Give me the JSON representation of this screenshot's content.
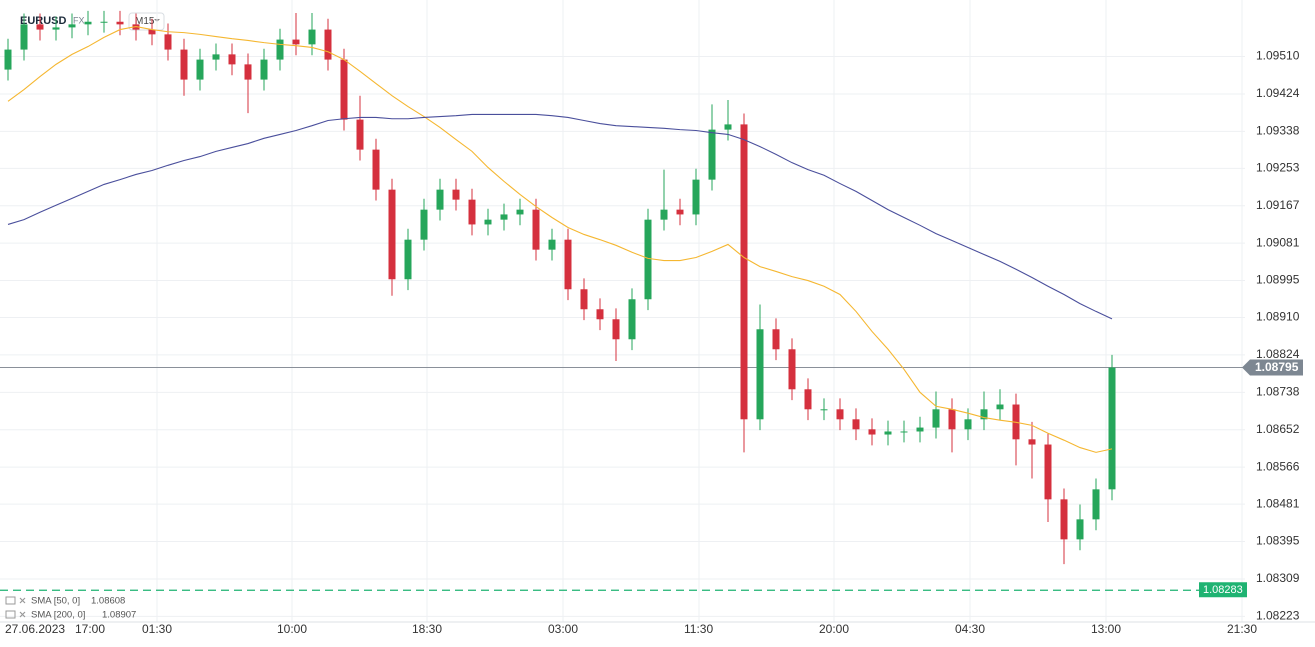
{
  "chart_data": {
    "type": "candlestick",
    "symbol": "EURUSD",
    "market": "FX",
    "interval": "M15",
    "up_color": "#26a65b",
    "down_color": "#d5303e",
    "open": [
      1.0948,
      1.09526,
      1.09584,
      1.09572,
      1.09577,
      1.09584,
      1.0959,
      1.0959,
      1.09584,
      1.09572,
      1.09561,
      1.09526,
      1.09457,
      1.09503,
      1.09515,
      1.09492,
      1.09457,
      1.09503,
      1.09549,
      1.09538,
      1.09572,
      1.09503,
      1.09365,
      1.09296,
      1.09204,
      1.08998,
      1.09089,
      1.09158,
      1.09204,
      1.09181,
      1.09124,
      1.09135,
      1.09147,
      1.09158,
      1.09066,
      1.09089,
      1.08975,
      1.08929,
      1.08906,
      1.0886,
      1.08952,
      1.09135,
      1.09158,
      1.09147,
      1.09227,
      1.09342,
      1.09354,
      1.08676,
      1.08883,
      1.08837,
      1.08745,
      1.08699,
      1.08699,
      1.08676,
      1.08653,
      1.08641,
      1.08648,
      1.08648,
      1.08657,
      1.08699,
      1.08653,
      1.08676,
      1.08699,
      1.0871,
      1.0863,
      1.08618,
      1.08492,
      1.084,
      1.08446,
      1.08515
    ],
    "high": [
      1.09551,
      1.09609,
      1.09609,
      1.09602,
      1.09609,
      1.09615,
      1.09615,
      1.09615,
      1.09609,
      1.09597,
      1.09586,
      1.09551,
      1.09528,
      1.0954,
      1.0954,
      1.09517,
      1.09528,
      1.09574,
      1.0961,
      1.0961,
      1.09597,
      1.09528,
      1.0942,
      1.09321,
      1.09229,
      1.09114,
      1.09183,
      1.09229,
      1.09229,
      1.09206,
      1.0916,
      1.09172,
      1.09183,
      1.09183,
      1.09114,
      1.09114,
      1.09,
      1.08954,
      1.08931,
      1.08977,
      1.0916,
      1.0925,
      1.09183,
      1.09252,
      1.094,
      1.0941,
      1.09379,
      1.0894,
      1.08908,
      1.08862,
      1.0877,
      1.08724,
      1.08724,
      1.08701,
      1.08678,
      1.08673,
      1.08673,
      1.08682,
      1.0874,
      1.08724,
      1.08701,
      1.0874,
      1.08745,
      1.08735,
      1.0867,
      1.08643,
      1.08517,
      1.0848,
      1.0854,
      1.08824
    ],
    "low": [
      1.09455,
      1.09501,
      1.09547,
      1.09547,
      1.09552,
      1.09559,
      1.09565,
      1.09559,
      1.09547,
      1.09536,
      1.09501,
      1.0942,
      1.09432,
      1.09478,
      1.09467,
      1.0938,
      1.09432,
      1.09478,
      1.09513,
      1.09513,
      1.09478,
      1.0934,
      1.09271,
      1.09179,
      1.0896,
      1.08973,
      1.09064,
      1.09133,
      1.09156,
      1.09099,
      1.09099,
      1.0911,
      1.09122,
      1.09041,
      1.09041,
      1.0895,
      1.08904,
      1.08881,
      1.0881,
      1.08835,
      1.08927,
      1.0911,
      1.09122,
      1.09122,
      1.09202,
      1.09317,
      1.086,
      1.08651,
      1.08812,
      1.0872,
      1.08674,
      1.08674,
      1.08651,
      1.08628,
      1.08616,
      1.08616,
      1.08623,
      1.08623,
      1.08632,
      1.086,
      1.08628,
      1.08651,
      1.08674,
      1.0857,
      1.0854,
      1.0844,
      1.08343,
      1.08375,
      1.08421,
      1.0849
    ],
    "close": [
      1.09526,
      1.09584,
      1.09572,
      1.09577,
      1.09584,
      1.0959,
      1.0959,
      1.09584,
      1.09572,
      1.09561,
      1.09526,
      1.09457,
      1.09503,
      1.09515,
      1.09492,
      1.09457,
      1.09503,
      1.09549,
      1.09538,
      1.09572,
      1.09503,
      1.09365,
      1.09296,
      1.09204,
      1.08998,
      1.09089,
      1.09158,
      1.09204,
      1.09181,
      1.09124,
      1.09135,
      1.09147,
      1.09158,
      1.09066,
      1.09089,
      1.08975,
      1.08929,
      1.08906,
      1.0886,
      1.08952,
      1.09135,
      1.09158,
      1.09147,
      1.09227,
      1.09342,
      1.09354,
      1.08676,
      1.08883,
      1.08837,
      1.08745,
      1.08699,
      1.08699,
      1.08676,
      1.08653,
      1.08641,
      1.08648,
      1.08648,
      1.08657,
      1.08699,
      1.08653,
      1.08676,
      1.08699,
      1.0871,
      1.0863,
      1.08618,
      1.08492,
      1.084,
      1.08446,
      1.08515,
      1.08795
    ],
    "series": [
      {
        "name": "SMA [50, 0]",
        "color": "#f5b731",
        "values": [
          1.09407,
          1.09434,
          1.09464,
          1.09492,
          1.09515,
          1.09533,
          1.09554,
          1.09572,
          1.09579,
          1.09572,
          1.09567,
          1.09565,
          1.09561,
          1.09556,
          1.09551,
          1.09547,
          1.09542,
          1.09538,
          1.09535,
          1.09531,
          1.09521,
          1.09503,
          1.09476,
          1.09448,
          1.0942,
          1.09395,
          1.09372,
          1.09347,
          1.09319,
          1.09292,
          1.09255,
          1.09223,
          1.09193,
          1.09165,
          1.0914,
          1.09117,
          1.09101,
          1.09089,
          1.09076,
          1.0906,
          1.09046,
          1.09041,
          1.09041,
          1.09048,
          1.09062,
          1.09078,
          1.09048,
          1.09027,
          1.09016,
          1.09004,
          1.08995,
          1.08982,
          1.08963,
          1.08924,
          1.08878,
          1.08837,
          1.08791,
          1.08738,
          1.08706,
          1.08699,
          1.0869,
          1.0868,
          1.08674,
          1.08669,
          1.08662,
          1.08644,
          1.08628,
          1.08611,
          1.086,
          1.08608
        ]
      },
      {
        "name": "SMA [200, 0]",
        "color": "#4a4f9c",
        "values": [
          1.09124,
          1.09135,
          1.09152,
          1.09168,
          1.09184,
          1.092,
          1.09216,
          1.09227,
          1.09239,
          1.09248,
          1.0926,
          1.09271,
          1.0928,
          1.09292,
          1.09301,
          1.0931,
          1.09322,
          1.09331,
          1.0934,
          1.09351,
          1.09363,
          1.09367,
          1.0937,
          1.0937,
          1.09367,
          1.09367,
          1.0937,
          1.09372,
          1.09374,
          1.09377,
          1.09377,
          1.09377,
          1.09377,
          1.09377,
          1.09374,
          1.0937,
          1.09363,
          1.09356,
          1.09351,
          1.09349,
          1.09347,
          1.09345,
          1.09342,
          1.0934,
          1.09335,
          1.09331,
          1.09319,
          1.09303,
          1.09285,
          1.09266,
          1.0925,
          1.09237,
          1.09218,
          1.092,
          1.09179,
          1.09158,
          1.0914,
          1.09122,
          1.09103,
          1.09087,
          1.09071,
          1.09055,
          1.09039,
          1.09021,
          1.09002,
          1.08982,
          1.08963,
          1.08942,
          1.08924,
          1.08907
        ]
      }
    ],
    "last_price": 1.08795,
    "last_price_color": "#7d8792",
    "level": 1.08283,
    "level_color": "#1fb372",
    "ylim": [
      1.0821,
      1.0964
    ],
    "yticks": [
      {
        "value": 1.0951,
        "label": "1.09510"
      },
      1.09424,
      1.09338,
      1.09253,
      1.09167,
      1.09081,
      1.08995,
      {
        "value": 1.0891,
        "label": "1.08910"
      },
      1.08824,
      1.08738,
      1.08652,
      1.08566,
      1.08481,
      1.08395,
      1.08309,
      1.08223
    ],
    "xticks": [
      "27.06.2023",
      "17:00",
      "01:30",
      "10:00",
      "18:30",
      "03:00",
      "11:30",
      "20:00",
      "04:30",
      "13:00",
      "21:30"
    ],
    "grid": true
  }
}
